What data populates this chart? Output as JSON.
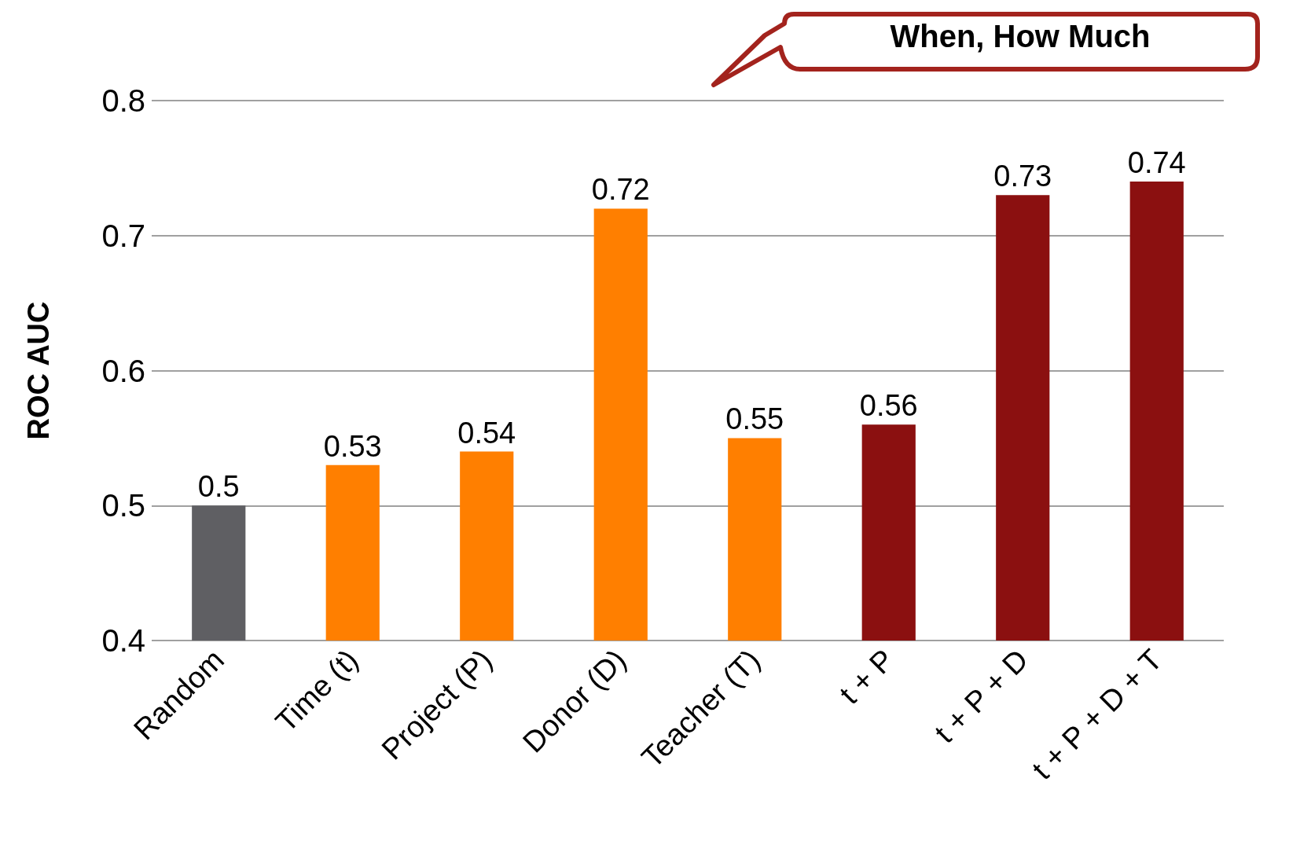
{
  "chart_data": {
    "type": "bar",
    "ylabel": "ROC AUC",
    "categories": [
      "Random",
      "Time (t)",
      "Project (P)",
      "Donor (D)",
      "Teacher (T)",
      "t + P",
      "t + P + D",
      "t + P + D + T"
    ],
    "values": [
      0.5,
      0.53,
      0.54,
      0.72,
      0.55,
      0.56,
      0.73,
      0.74
    ],
    "colors": [
      "#5f5f63",
      "#ff7f00",
      "#ff7f00",
      "#ff7f00",
      "#ff7f00",
      "#8b1010",
      "#8b1010",
      "#8b1010"
    ],
    "ylim": [
      0.4,
      0.8
    ],
    "yticks": [
      0.4,
      0.5,
      0.6,
      0.7,
      0.8
    ],
    "grid": "y",
    "data_labels": true,
    "annotations": [
      "When, How Much"
    ]
  }
}
